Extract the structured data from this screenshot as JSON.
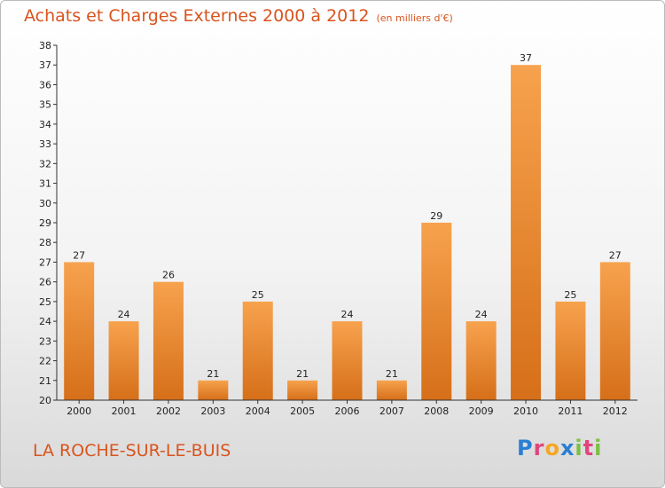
{
  "header": {
    "title": "Achats et Charges Externes 2000 à 2012",
    "subtitle": "(en milliers d'€)"
  },
  "footer": {
    "commune": "LA ROCHE-SUR-LE-BUIS",
    "logo": "Proxiti"
  },
  "colors": {
    "accent": "#d9541e",
    "bar_light": "#f7a24e",
    "bar_dark": "#d66f19"
  },
  "chart_data": {
    "type": "bar",
    "title": "Achats et Charges Externes 2000 à 2012",
    "subtitle": "(en milliers d'€)",
    "categories": [
      "2000",
      "2001",
      "2002",
      "2003",
      "2004",
      "2005",
      "2006",
      "2007",
      "2008",
      "2009",
      "2010",
      "2011",
      "2012"
    ],
    "values": [
      27,
      24,
      26,
      21,
      25,
      21,
      24,
      21,
      29,
      24,
      37,
      25,
      27
    ],
    "ylim": [
      20,
      38
    ],
    "yticks": [
      20,
      21,
      22,
      23,
      24,
      25,
      26,
      27,
      28,
      29,
      30,
      31,
      32,
      33,
      34,
      35,
      36,
      37,
      38
    ],
    "grid": false,
    "legend": "none"
  }
}
